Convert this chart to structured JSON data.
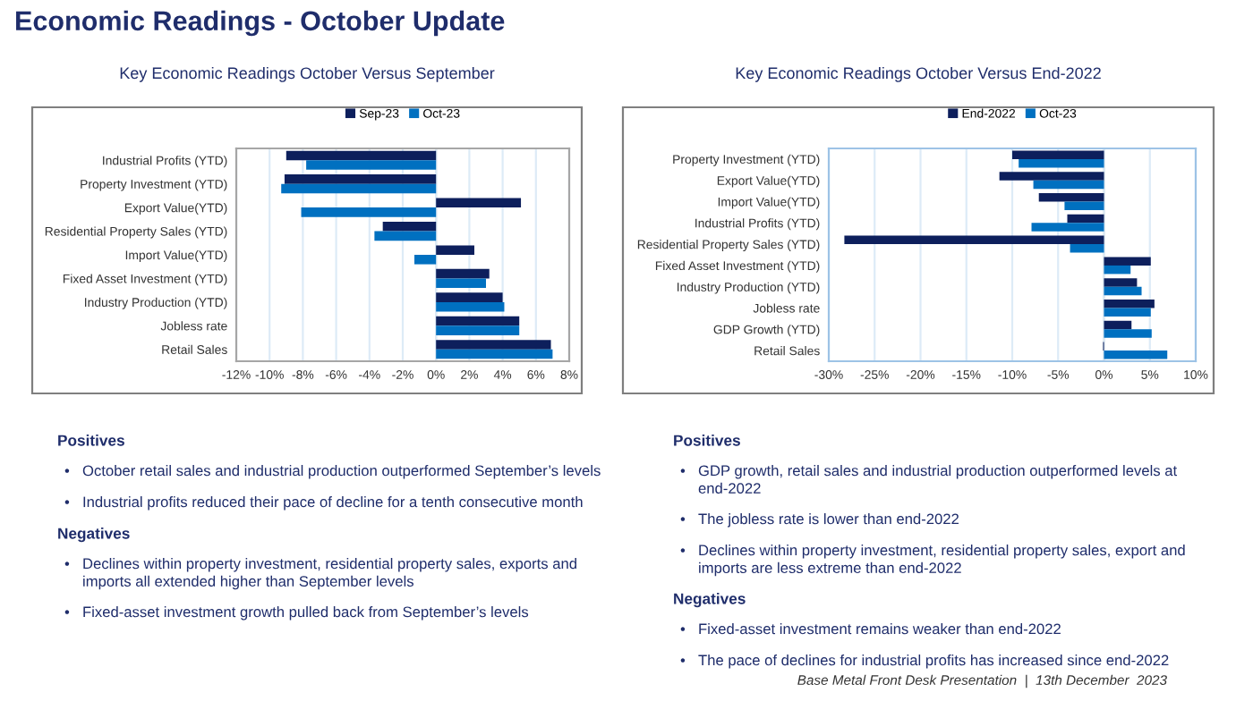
{
  "chart_data": [
    {
      "type": "bar",
      "orientation": "horizontal",
      "title": "Key Economic Readings October Versus September",
      "categories": [
        "Industrial Profits (YTD)",
        "Property Investment (YTD)",
        "Export Value(YTD)",
        "Residential Property Sales (YTD)",
        "Import Value(YTD)",
        "Fixed Asset Investment (YTD)",
        "Industry Production (YTD)",
        "Jobless rate",
        "Retail Sales"
      ],
      "series": [
        {
          "name": "Sep-23",
          "color": "#0d1f5c",
          "values": [
            -9.0,
            -9.1,
            5.1,
            -3.2,
            2.3,
            3.2,
            4.0,
            5.0,
            6.9
          ]
        },
        {
          "name": "Oct-23",
          "color": "#0070c0",
          "values": [
            -7.8,
            -9.3,
            -8.1,
            -3.7,
            -1.3,
            3.0,
            4.1,
            5.0,
            7.0
          ]
        }
      ],
      "xlim": [
        -12,
        8
      ],
      "xticks": [
        {
          "value": -12,
          "label": "-12%"
        },
        {
          "value": -10,
          "label": "-10%"
        },
        {
          "value": -8,
          "label": "-8%"
        },
        {
          "value": -6,
          "label": "-6%"
        },
        {
          "value": -4,
          "label": "-4%"
        },
        {
          "value": -2,
          "label": "-2%"
        },
        {
          "value": 0,
          "label": "0%"
        },
        {
          "value": 2,
          "label": "2%"
        },
        {
          "value": 4,
          "label": "4%"
        },
        {
          "value": 6,
          "label": "6%"
        },
        {
          "value": 8,
          "label": "8%"
        }
      ],
      "grid": "x",
      "legend": "top",
      "annotations": [
        "Economic Readings - October Update",
        "Positives",
        "• October retail sales and industrial production outperformed September’s levels",
        "• Industrial profits reduced their pace of decline for a tenth consecutive month",
        "Negatives",
        "• Declines within property investment, residential property sales, exports and\nimports all extended higher than September levels",
        "• Fixed-asset investment growth pulled back from September’s levels"
      ]
    },
    {
      "type": "bar",
      "orientation": "horizontal",
      "title": "Key Economic Readings October Versus End-2022",
      "categories": [
        "Property Investment (YTD)",
        "Export Value(YTD)",
        "Import Value(YTD)",
        "Industrial Profits (YTD)",
        "Residential Property Sales (YTD)",
        "Fixed Asset Investment (YTD)",
        "Industry Production (YTD)",
        "Jobless rate",
        "GDP Growth (YTD)",
        "Retail Sales"
      ],
      "series": [
        {
          "name": "End-2022",
          "color": "#0d1f5c",
          "values": [
            -10.0,
            -11.4,
            -7.1,
            -4.0,
            -28.3,
            5.1,
            3.6,
            5.5,
            3.0,
            -0.1
          ]
        },
        {
          "name": "Oct-23",
          "color": "#0070c0",
          "values": [
            -9.3,
            -7.7,
            -4.3,
            -7.9,
            -3.7,
            2.9,
            4.1,
            5.1,
            5.2,
            6.9
          ]
        }
      ],
      "xlim": [
        -30,
        10
      ],
      "xticks": [
        {
          "value": -30,
          "label": "-30%"
        },
        {
          "value": -25,
          "label": "-25%"
        },
        {
          "value": -20,
          "label": "-20%"
        },
        {
          "value": -15,
          "label": "-15%"
        },
        {
          "value": -10,
          "label": "-10%"
        },
        {
          "value": -5,
          "label": "-5%"
        },
        {
          "value": 0,
          "label": "0%"
        },
        {
          "value": 5,
          "label": "5%"
        },
        {
          "value": 10,
          "label": "10%"
        }
      ],
      "grid": "x",
      "legend": "top",
      "annotations": [
        "Positives",
        "• GDP growth, retail sales and industrial production outperformed levels at\nend-2022",
        "• The jobless rate is lower than end-2022",
        "• Declines within property investment, residential property sales, export and\nimports are less extreme than end-2022",
        "Negatives",
        "• Fixed-asset investment remains weaker than end-2022",
        "• The pace of declines for industrial profits has increased since end-2022",
        "Base Metal Front Desk Presentation  |  13th December  2023"
      ]
    }
  ]
}
